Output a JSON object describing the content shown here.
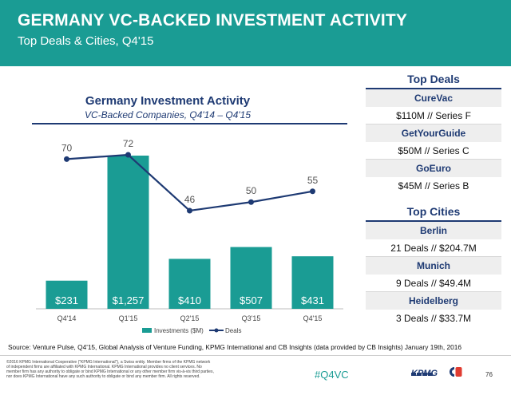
{
  "header": {
    "title": "GERMANY VC-BACKED INVESTMENT ACTIVITY",
    "subtitle": "Top Deals & Cities, Q4'15"
  },
  "chart_data": {
    "type": "bar",
    "title": "Germany Investment Activity",
    "subtitle": "VC-Backed Companies, Q4'14 – Q4'15",
    "categories": [
      "Q4'14",
      "Q1'15",
      "Q2'15",
      "Q3'15",
      "Q4'15"
    ],
    "series": [
      {
        "name": "Investments ($M)",
        "type": "bar",
        "values": [
          231,
          1257,
          410,
          507,
          431
        ],
        "labels": [
          "$231",
          "$1,257",
          "$410",
          "$507",
          "$431"
        ],
        "color": "#1a9c94"
      },
      {
        "name": "Deals",
        "type": "line",
        "values": [
          70,
          72,
          46,
          50,
          55
        ],
        "labels": [
          "70",
          "72",
          "46",
          "50",
          "55"
        ],
        "color": "#1e3a73"
      }
    ],
    "grid": false,
    "legend_position": "bottom"
  },
  "panels": {
    "top_deals": {
      "title": "Top Deals",
      "rows": [
        {
          "name": "CureVac",
          "value": "$110M // Series F"
        },
        {
          "name": "GetYourGuide",
          "value": "$50M // Series C"
        },
        {
          "name": "GoEuro",
          "value": "$45M // Series B"
        }
      ]
    },
    "top_cities": {
      "title": "Top Cities",
      "rows": [
        {
          "name": "Berlin",
          "value": "21 Deals // $204.7M"
        },
        {
          "name": "Munich",
          "value": "9 Deals // $49.4M"
        },
        {
          "name": "Heidelberg",
          "value": "3 Deals // $33.7M"
        }
      ]
    }
  },
  "footer": {
    "source": "Source: Venture Pulse, Q4'15, Global Analysis of Venture Funding, KPMG International and CB Insights (data provided by CB Insights) January 19th, 2016",
    "disclaimer": "©2016 KPMG International Cooperative (\"KPMG International\"), a Swiss entity. Member firms of the KPMG network of independent firms are affiliated with KPMG International. KPMG International provides no client services. No member firm has any authority to obligate or bind KPMG International or any other member firm vis-à-vis third parties, nor does KPMG International have any such authority to obligate or bind any member firm. All rights reserved.",
    "hashtag": "#Q4VC",
    "logo_text": "KPMG",
    "page_number": "76"
  },
  "colors": {
    "teal": "#1a9c94",
    "navy": "#1e3a73"
  }
}
